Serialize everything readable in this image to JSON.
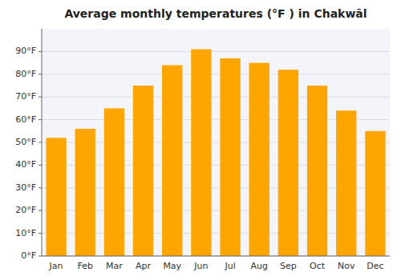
{
  "chart_data": {
    "type": "bar",
    "title": "Average monthly temperatures (°F ) in Chakwāl",
    "categories": [
      "Jan",
      "Feb",
      "Mar",
      "Apr",
      "May",
      "Jun",
      "Jul",
      "Aug",
      "Sep",
      "Oct",
      "Nov",
      "Dec"
    ],
    "values": [
      52,
      56,
      65,
      75,
      84,
      91,
      87,
      85,
      82,
      75,
      64,
      55
    ],
    "color": "#FFA500",
    "ylim": [
      0,
      100
    ],
    "yticks": [
      {
        "value": 0,
        "label": "0°F"
      },
      {
        "value": 10,
        "label": "10°F"
      },
      {
        "value": 20,
        "label": "20°F"
      },
      {
        "value": 30,
        "label": "30°F"
      },
      {
        "value": 40,
        "label": "40°F"
      },
      {
        "value": 50,
        "label": "50°F"
      },
      {
        "value": 60,
        "label": "60°F"
      },
      {
        "value": 70,
        "label": "70°F"
      },
      {
        "value": 80,
        "label": "80°F"
      },
      {
        "value": 90,
        "label": "90°F"
      }
    ],
    "grid": true
  }
}
